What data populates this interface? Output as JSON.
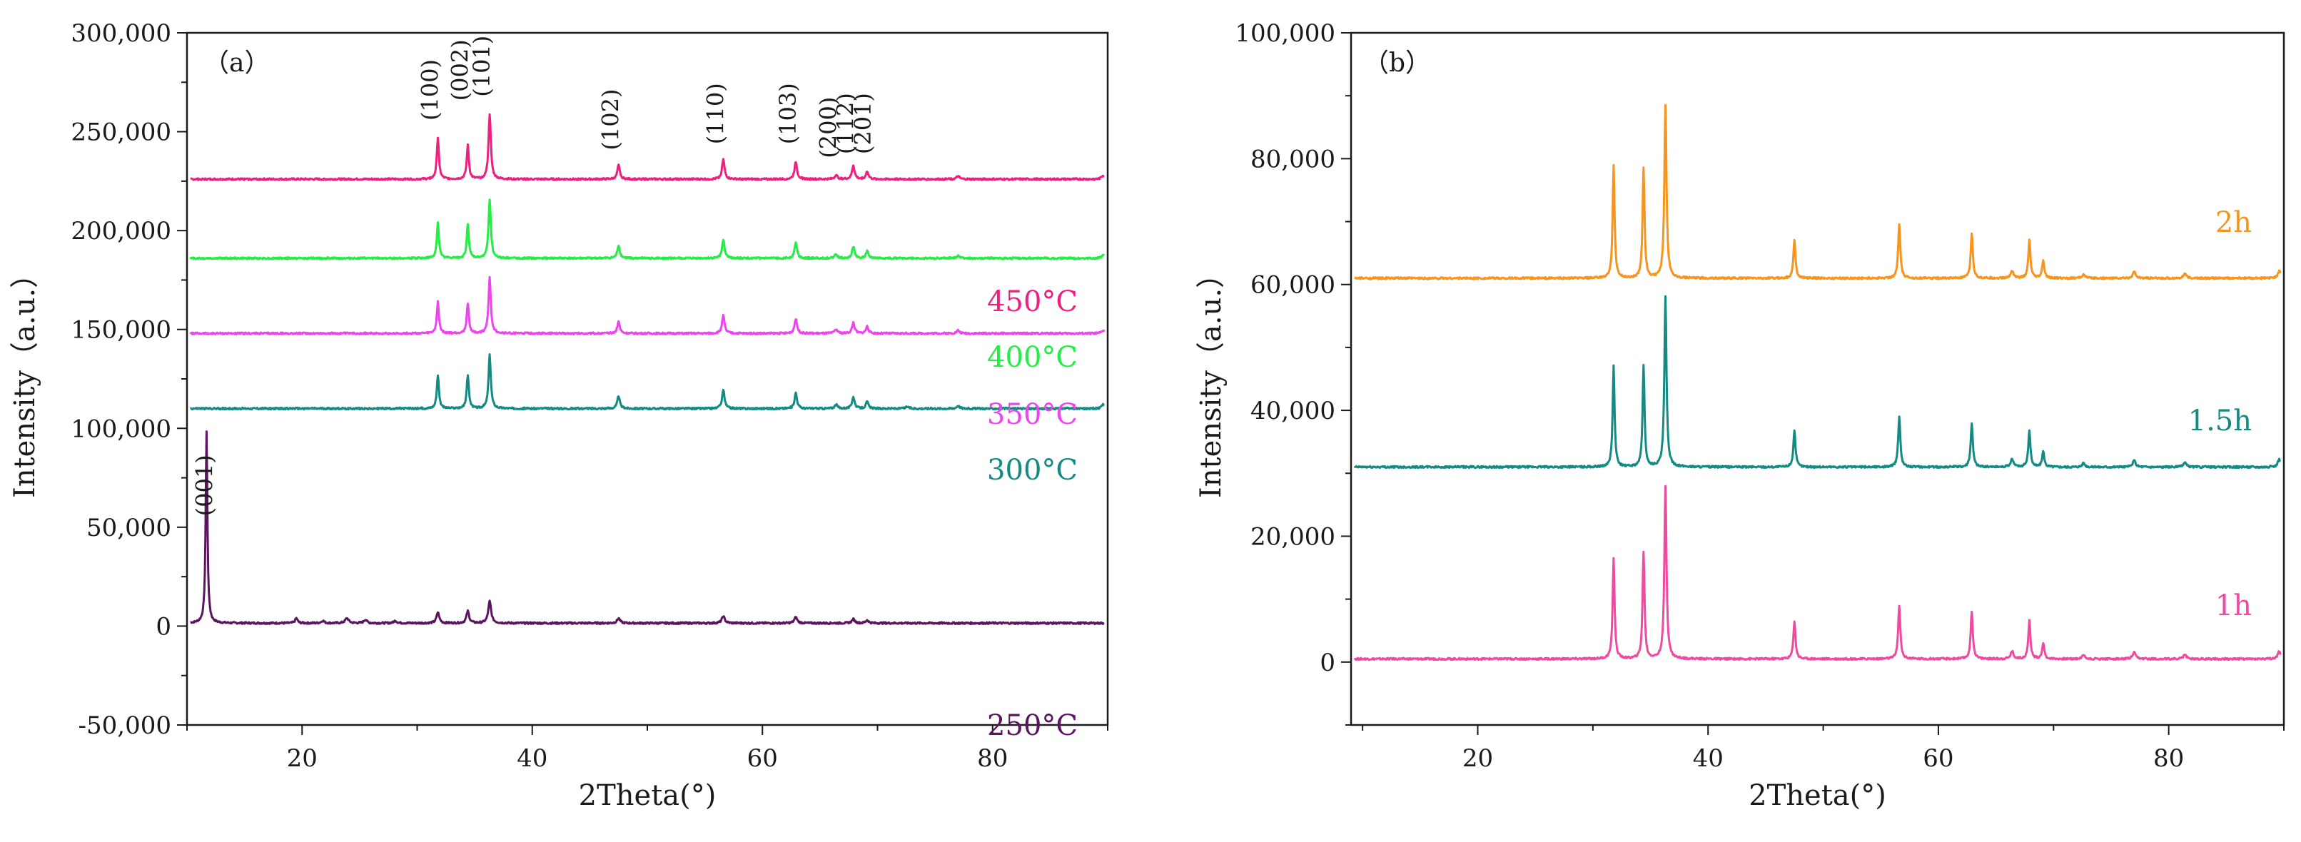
{
  "chart_data": [
    {
      "type": "line",
      "panel_label": "（a）",
      "xlabel": "2Theta(°)",
      "ylabel": "Intensity（a.u.）",
      "xlim": [
        10,
        90
      ],
      "ylim": [
        -50000,
        300000
      ],
      "x_ticks": [
        20,
        40,
        60,
        80
      ],
      "x_tick_labels": [
        "20",
        "40",
        "60",
        "80"
      ],
      "y_ticks": [
        -50000,
        0,
        50000,
        100000,
        150000,
        200000,
        250000,
        300000
      ],
      "y_tick_labels": [
        "-50,000",
        "0",
        "50,000",
        "100,000",
        "150,000",
        "200,000",
        "250,000",
        "300,000"
      ],
      "peak_positions": [
        31.8,
        34.4,
        36.3,
        47.5,
        56.6,
        62.9,
        66.4,
        67.9,
        69.1,
        72.6,
        77.0,
        81.4,
        89.6
      ],
      "series": [
        {
          "name": "250°C",
          "color": "#5b1560",
          "baseline": 1500,
          "peaks": [
            [
              11.7,
              97000,
              0.18
            ],
            [
              19.5,
              2500,
              0.25
            ],
            [
              21.8,
              1200,
              0.3
            ],
            [
              23.9,
              2500,
              0.35
            ],
            [
              25.5,
              1800,
              0.3
            ],
            [
              28.1,
              1200,
              0.3
            ],
            [
              31.8,
              5500,
              0.28
            ],
            [
              34.4,
              6000,
              0.28
            ],
            [
              36.3,
              11000,
              0.3
            ],
            [
              47.5,
              2500,
              0.3
            ],
            [
              56.6,
              3500,
              0.3
            ],
            [
              62.9,
              3000,
              0.3
            ],
            [
              67.9,
              2000,
              0.3
            ],
            [
              69.1,
              1500,
              0.3
            ]
          ]
        },
        {
          "name": "300°C",
          "color": "#138a82",
          "baseline": 110000,
          "peaks": [
            [
              31.8,
              17000,
              0.22
            ],
            [
              34.4,
              17000,
              0.22
            ],
            [
              36.3,
              27000,
              0.24
            ],
            [
              47.5,
              6500,
              0.26
            ],
            [
              56.6,
              9500,
              0.26
            ],
            [
              62.9,
              8000,
              0.26
            ],
            [
              66.4,
              2000,
              0.3
            ],
            [
              67.9,
              6000,
              0.26
            ],
            [
              69.1,
              3500,
              0.26
            ],
            [
              72.6,
              1000,
              0.3
            ],
            [
              77.0,
              1500,
              0.3
            ],
            [
              89.6,
              2000,
              0.3
            ]
          ]
        },
        {
          "name": "350°C",
          "color": "#ee44ee",
          "baseline": 148000,
          "peaks": [
            [
              31.8,
              16000,
              0.22
            ],
            [
              34.4,
              15000,
              0.22
            ],
            [
              36.3,
              28000,
              0.24
            ],
            [
              47.5,
              6000,
              0.26
            ],
            [
              56.6,
              9000,
              0.26
            ],
            [
              62.9,
              7500,
              0.26
            ],
            [
              66.4,
              2000,
              0.3
            ],
            [
              67.9,
              5500,
              0.26
            ],
            [
              69.1,
              3500,
              0.26
            ],
            [
              77.0,
              1500,
              0.3
            ],
            [
              89.6,
              1500,
              0.3
            ]
          ]
        },
        {
          "name": "400°C",
          "color": "#22ee44",
          "baseline": 186000,
          "peaks": [
            [
              31.8,
              18000,
              0.22
            ],
            [
              34.4,
              17000,
              0.22
            ],
            [
              36.3,
              30000,
              0.24
            ],
            [
              47.5,
              6500,
              0.26
            ],
            [
              56.6,
              9500,
              0.26
            ],
            [
              62.9,
              8000,
              0.26
            ],
            [
              66.4,
              2000,
              0.3
            ],
            [
              67.9,
              6000,
              0.26
            ],
            [
              69.1,
              3500,
              0.26
            ],
            [
              77.0,
              1500,
              0.3
            ],
            [
              89.6,
              1500,
              0.3
            ]
          ]
        },
        {
          "name": "450°C",
          "color": "#ee1f7e",
          "baseline": 226000,
          "peaks": [
            [
              31.8,
              21000,
              0.22
            ],
            [
              34.4,
              17000,
              0.22
            ],
            [
              36.3,
              33000,
              0.24
            ],
            [
              47.5,
              7000,
              0.26
            ],
            [
              56.6,
              10000,
              0.26
            ],
            [
              62.9,
              9000,
              0.26
            ],
            [
              66.4,
              2000,
              0.3
            ],
            [
              67.9,
              7000,
              0.26
            ],
            [
              69.1,
              4000,
              0.26
            ],
            [
              77.0,
              1500,
              0.3
            ],
            [
              89.6,
              2000,
              0.3
            ]
          ]
        }
      ],
      "annotations": [
        {
          "text": "(001)",
          "x": 12.2,
          "y": 52000
        },
        {
          "text": "(100)",
          "x": 31.8,
          "y": 252000
        },
        {
          "text": "(002)",
          "x": 34.4,
          "y": 262000
        },
        {
          "text": "(101)",
          "x": 36.3,
          "y": 264000
        },
        {
          "text": "(102)",
          "x": 47.5,
          "y": 237000
        },
        {
          "text": "(110)",
          "x": 56.6,
          "y": 240000
        },
        {
          "text": "(103)",
          "x": 62.9,
          "y": 240000
        },
        {
          "text": "(200)",
          "x": 66.4,
          "y": 233000
        },
        {
          "text": "(112)",
          "x": 67.9,
          "y": 235000
        },
        {
          "text": "(201)",
          "x": 69.4,
          "y": 235000
        }
      ]
    },
    {
      "type": "line",
      "panel_label": "（b）",
      "xlabel": "2Theta(°)",
      "ylabel": "Intensity（a.u.）",
      "xlim": [
        9,
        90
      ],
      "ylim": [
        -10000,
        100000
      ],
      "x_ticks": [
        20,
        40,
        60,
        80
      ],
      "x_tick_labels": [
        "20",
        "40",
        "60",
        "80"
      ],
      "y_ticks": [
        0,
        20000,
        40000,
        60000,
        80000,
        100000
      ],
      "y_tick_labels": [
        "0",
        "20,000",
        "40,000",
        "60,000",
        "80,000",
        "100,000"
      ],
      "series": [
        {
          "name": "1h",
          "color": "#ee4aa0",
          "baseline": 500,
          "peaks": [
            [
              31.8,
              16000,
              0.2
            ],
            [
              34.4,
              17000,
              0.2
            ],
            [
              36.3,
              27500,
              0.22
            ],
            [
              47.5,
              6000,
              0.22
            ],
            [
              56.6,
              8500,
              0.22
            ],
            [
              62.9,
              7500,
              0.22
            ],
            [
              66.4,
              1200,
              0.3
            ],
            [
              67.9,
              6000,
              0.22
            ],
            [
              69.1,
              2500,
              0.22
            ],
            [
              72.6,
              600,
              0.3
            ],
            [
              77.0,
              1000,
              0.3
            ],
            [
              81.4,
              700,
              0.3
            ],
            [
              89.6,
              1200,
              0.3
            ]
          ]
        },
        {
          "name": "1.5h",
          "color": "#138a82",
          "baseline": 31000,
          "peaks": [
            [
              31.8,
              16000,
              0.2
            ],
            [
              34.4,
              16000,
              0.2
            ],
            [
              36.3,
              27000,
              0.22
            ],
            [
              47.5,
              5800,
              0.22
            ],
            [
              56.6,
              8000,
              0.22
            ],
            [
              62.9,
              7000,
              0.22
            ],
            [
              66.4,
              1200,
              0.3
            ],
            [
              67.9,
              5800,
              0.22
            ],
            [
              69.1,
              2500,
              0.22
            ],
            [
              72.6,
              600,
              0.3
            ],
            [
              77.0,
              1000,
              0.3
            ],
            [
              81.4,
              700,
              0.3
            ],
            [
              89.6,
              1200,
              0.3
            ]
          ]
        },
        {
          "name": "2h",
          "color": "#f7941d",
          "baseline": 61000,
          "peaks": [
            [
              31.8,
              18000,
              0.2
            ],
            [
              34.4,
              17500,
              0.2
            ],
            [
              36.3,
              27500,
              0.22
            ],
            [
              47.5,
              6000,
              0.22
            ],
            [
              56.6,
              8500,
              0.22
            ],
            [
              62.9,
              7200,
              0.22
            ],
            [
              66.4,
              1200,
              0.3
            ],
            [
              67.9,
              6000,
              0.22
            ],
            [
              69.1,
              2800,
              0.22
            ],
            [
              72.6,
              600,
              0.3
            ],
            [
              77.0,
              1000,
              0.3
            ],
            [
              81.4,
              700,
              0.3
            ],
            [
              89.6,
              1200,
              0.3
            ]
          ]
        }
      ],
      "annotations": []
    }
  ]
}
